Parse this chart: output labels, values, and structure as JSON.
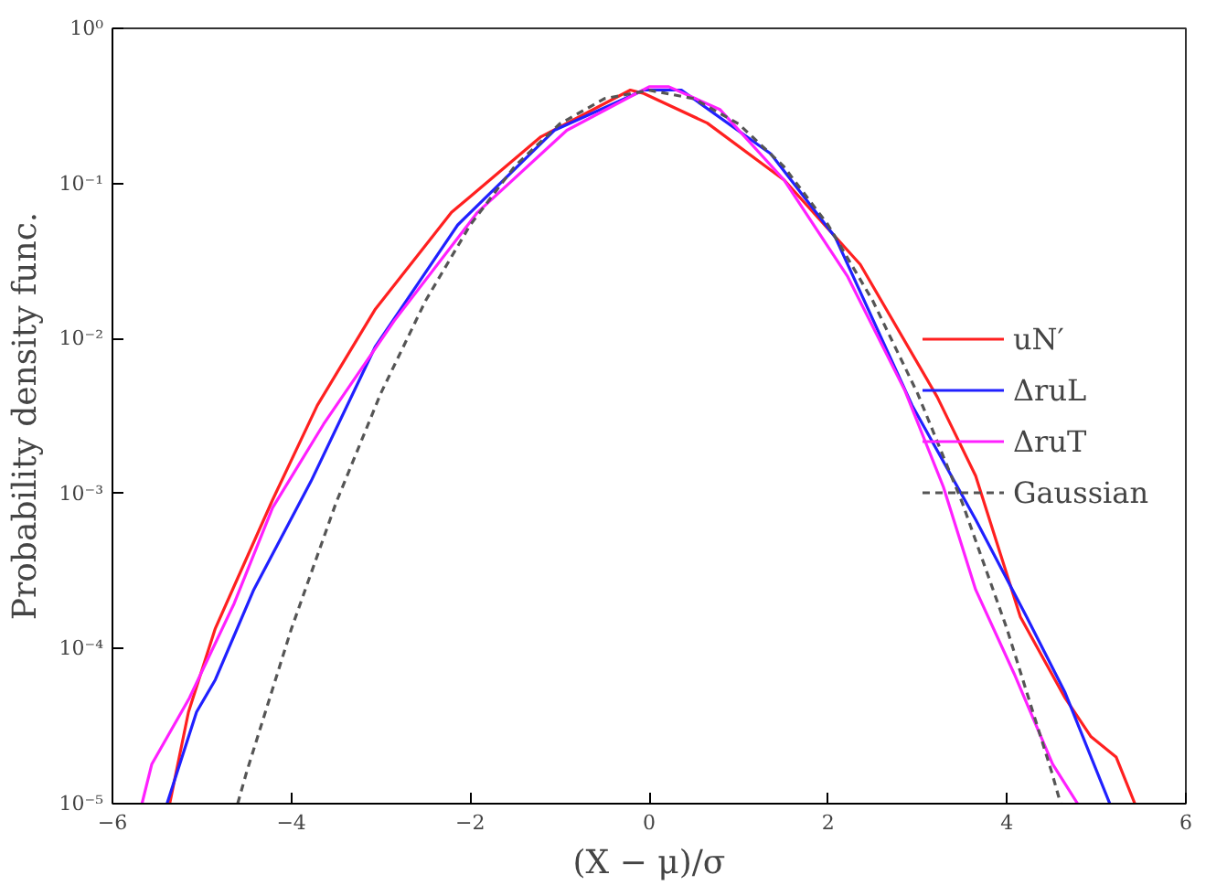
{
  "chart_data": {
    "type": "line",
    "xlabel": "(X − μ)/σ",
    "ylabel": "Probability density func.",
    "log": "y",
    "grid": false,
    "legend": "right",
    "xlim": [
      -6,
      6
    ],
    "xticks": [
      -6,
      -4,
      -2,
      0,
      2,
      4,
      6
    ],
    "ylim": [
      1e-05,
      1
    ],
    "yticks": [
      {
        "value": 1e-05,
        "label": "10⁻⁵"
      },
      {
        "value": 0.0001,
        "label": "10⁻⁴"
      },
      {
        "value": 0.001,
        "label": "10⁻³"
      },
      {
        "value": 0.01,
        "label": "10⁻²"
      },
      {
        "value": 0.1,
        "label": "10⁻¹"
      },
      {
        "value": 1,
        "label": "10⁰"
      }
    ],
    "series": [
      {
        "name": "uN′",
        "color": "#ff2020",
        "line_style": "solid",
        "x": [
          -5.36,
          -5.15,
          -4.85,
          -4.21,
          -3.71,
          -3.06,
          -2.21,
          -1.21,
          -0.21,
          -0.06,
          0.65,
          1.51,
          2.36,
          3.22,
          3.65,
          4.15,
          4.65,
          4.94,
          5.22,
          5.43
        ],
        "values": [
          1e-05,
          3.9e-05,
          0.000135,
          0.00091,
          0.0037,
          0.0155,
          0.065,
          0.2,
          0.4,
          0.38,
          0.245,
          0.105,
          0.03,
          0.0042,
          0.0013,
          0.00016,
          4.8e-05,
          2.7e-05,
          2e-05,
          1e-05
        ]
      },
      {
        "name": "ΔruL",
        "color": "#2020ff",
        "line_style": "solid",
        "x": [
          -5.39,
          -5.06,
          -4.85,
          -4.42,
          -3.78,
          -3.06,
          -2.14,
          -1.06,
          -0.06,
          0.36,
          1.36,
          2.08,
          2.94,
          3.65,
          4.22,
          4.65,
          5.15
        ],
        "values": [
          1e-05,
          3.9e-05,
          6.3e-05,
          0.00024,
          0.0012,
          0.0089,
          0.054,
          0.22,
          0.4,
          0.4,
          0.155,
          0.045,
          0.0037,
          0.00068,
          0.00016,
          5.2e-05,
          1e-05
        ]
      },
      {
        "name": "ΔruT",
        "color": "#ff20ff",
        "line_style": "solid",
        "x": [
          -5.67,
          -5.56,
          -5.14,
          -4.64,
          -4.21,
          -3.64,
          -2.85,
          -1.92,
          -0.92,
          0.0,
          0.22,
          0.79,
          1.51,
          2.22,
          2.86,
          3.29,
          3.65,
          4.08,
          4.51,
          4.79
        ],
        "values": [
          1e-05,
          1.8e-05,
          4.8e-05,
          0.000195,
          0.00081,
          0.0028,
          0.013,
          0.065,
          0.22,
          0.42,
          0.42,
          0.3,
          0.105,
          0.025,
          0.0046,
          0.0011,
          0.00024,
          6.9e-05,
          1.8e-05,
          1e-05
        ]
      },
      {
        "name": "Gaussian",
        "color": "#555555",
        "line_style": "dashed",
        "x": [
          -4.6,
          -4.5,
          -4,
          -3.5,
          -3,
          -2.5,
          -2,
          -1.5,
          -1,
          -0.5,
          0,
          0.5,
          1,
          1.5,
          2,
          2.5,
          3,
          3.5,
          4,
          4.5,
          4.6
        ],
        "values": [
          1e-05,
          1.6e-05,
          0.000134,
          0.000873,
          0.00443,
          0.0175,
          0.054,
          0.1295,
          0.242,
          0.352,
          0.399,
          0.352,
          0.242,
          0.1295,
          0.054,
          0.0175,
          0.00443,
          0.000873,
          0.000134,
          1.6e-05,
          1e-05
        ]
      }
    ]
  }
}
